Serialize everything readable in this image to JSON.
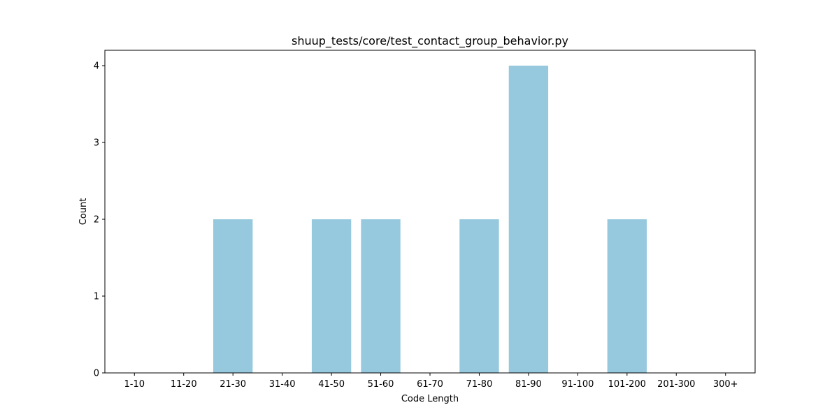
{
  "chart_data": {
    "type": "bar",
    "title": "shuup_tests/core/test_contact_group_behavior.py",
    "xlabel": "Code Length",
    "ylabel": "Count",
    "categories": [
      "1-10",
      "11-20",
      "21-30",
      "31-40",
      "41-50",
      "51-60",
      "61-70",
      "71-80",
      "81-90",
      "91-100",
      "101-200",
      "201-300",
      "300+"
    ],
    "values": [
      0,
      0,
      2,
      0,
      2,
      2,
      0,
      2,
      4,
      0,
      2,
      0,
      0
    ],
    "ylim": [
      0,
      4.2
    ],
    "yticks": [
      0,
      1,
      2,
      3,
      4
    ],
    "grid": false,
    "bar_color": "#96c9dd"
  }
}
